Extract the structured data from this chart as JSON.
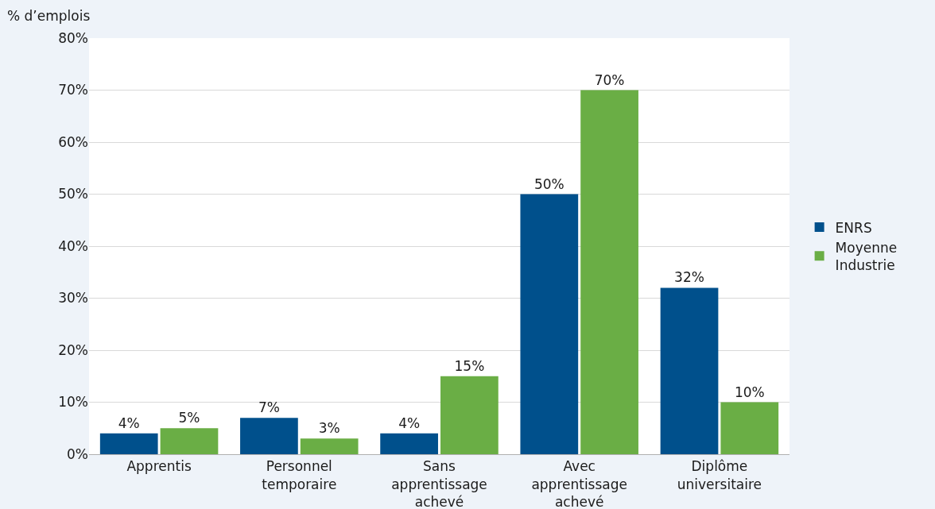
{
  "chart_data": {
    "type": "bar",
    "ylabel": "% d’emplois",
    "categories": [
      "Apprentis",
      "Personnel temporaire",
      "Sans apprentissage achevé",
      "Avec apprentissage achevé",
      "Diplôme universitaire"
    ],
    "series": [
      {
        "name": "ENRS",
        "color": "#00508c",
        "values": [
          4,
          7,
          4,
          50,
          32
        ],
        "value_labels": [
          "4%",
          "7%",
          "4%",
          "50%",
          "32%"
        ]
      },
      {
        "name": "Moyenne Industrie",
        "color": "#6aae45",
        "values": [
          5,
          3,
          15,
          70,
          10
        ],
        "value_labels": [
          "5%",
          "3%",
          "15%",
          "70%",
          "10%"
        ]
      }
    ],
    "ylim": [
      0,
      80
    ],
    "yticks": [
      {
        "value": 0,
        "label": "0%"
      },
      {
        "value": 10,
        "label": "10%"
      },
      {
        "value": 20,
        "label": "20%"
      },
      {
        "value": 30,
        "label": "30%"
      },
      {
        "value": 40,
        "label": "40%"
      },
      {
        "value": 50,
        "label": "50%"
      },
      {
        "value": 60,
        "label": "60%"
      },
      {
        "value": 70,
        "label": "70%"
      },
      {
        "value": 80,
        "label": "80%"
      }
    ],
    "grid": "y",
    "legend": "right"
  }
}
